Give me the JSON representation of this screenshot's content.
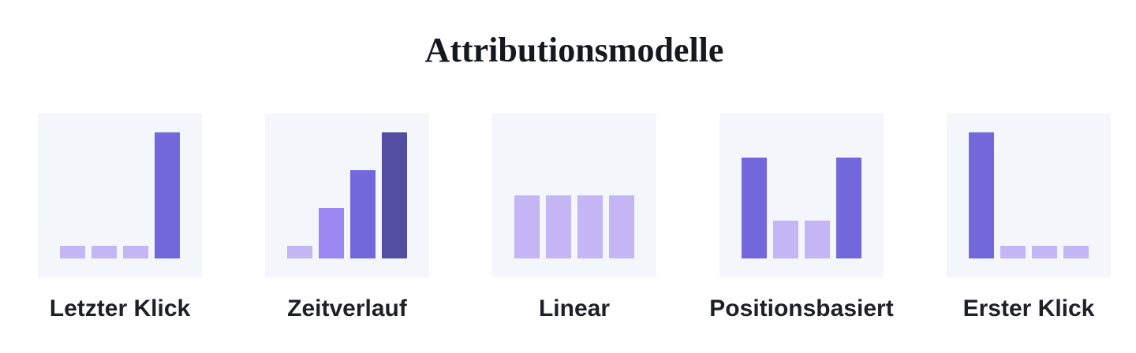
{
  "title": "Attributionsmodelle",
  "chart_data": [
    {
      "type": "bar",
      "title": "Letzter Klick",
      "values": [
        16,
        16,
        16,
        160
      ],
      "colors": [
        "#c4b5f5",
        "#c4b5f5",
        "#c4b5f5",
        "#7268db"
      ],
      "ylim": [
        0,
        160
      ]
    },
    {
      "type": "bar",
      "title": "Zeitverlauf",
      "values": [
        16,
        64,
        112,
        160
      ],
      "colors": [
        "#c4b5f5",
        "#9b88f2",
        "#7268db",
        "#544ea0"
      ],
      "ylim": [
        0,
        160
      ]
    },
    {
      "type": "bar",
      "title": "Linear",
      "values": [
        80,
        80,
        80,
        80
      ],
      "colors": [
        "#c4b5f5",
        "#c4b5f5",
        "#c4b5f5",
        "#c4b5f5"
      ],
      "ylim": [
        0,
        160
      ]
    },
    {
      "type": "bar",
      "title": "Positionsbasiert",
      "values": [
        128,
        48,
        48,
        128
      ],
      "colors": [
        "#7268db",
        "#c4b5f5",
        "#c4b5f5",
        "#7268db"
      ],
      "ylim": [
        0,
        160
      ]
    },
    {
      "type": "bar",
      "title": "Erster Klick",
      "values": [
        160,
        16,
        16,
        16
      ],
      "colors": [
        "#7268db",
        "#c4b5f5",
        "#c4b5f5",
        "#c4b5f5"
      ],
      "ylim": [
        0,
        160
      ]
    }
  ]
}
